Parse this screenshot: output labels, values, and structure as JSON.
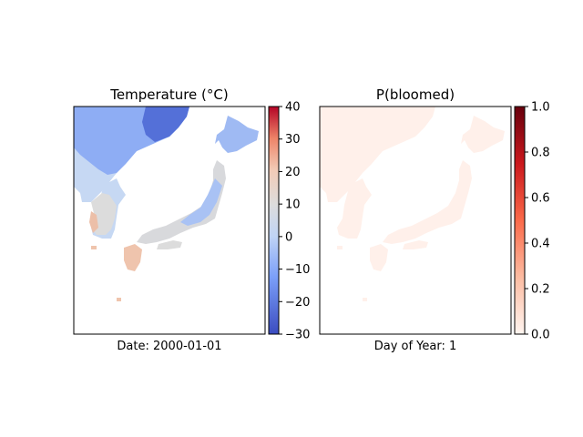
{
  "chart_data": [
    {
      "type": "heatmap",
      "title": "Temperature (°C)",
      "xlabel": "Date: 2000-01-01",
      "colormap": "coolwarm",
      "colorbar": {
        "min": -30,
        "max": 40,
        "ticks": [
          "40",
          "30",
          "20",
          "10",
          "0",
          "−10",
          "−20",
          "−30"
        ]
      },
      "approx_values": {
        "northeast_china": -25,
        "korea_north": -10,
        "korea_south": 5,
        "hokkaido": -12,
        "honshu": 2,
        "kyushu_south": 15
      }
    },
    {
      "type": "heatmap",
      "title": "P(bloomed)",
      "xlabel": "Day of Year: 1",
      "colormap": "Reds",
      "colorbar": {
        "min": 0,
        "max": 1,
        "ticks": [
          "1.0",
          "0.8",
          "0.6",
          "0.4",
          "0.2",
          "0.0"
        ]
      },
      "approx_values": {
        "land": 0.03
      }
    }
  ]
}
